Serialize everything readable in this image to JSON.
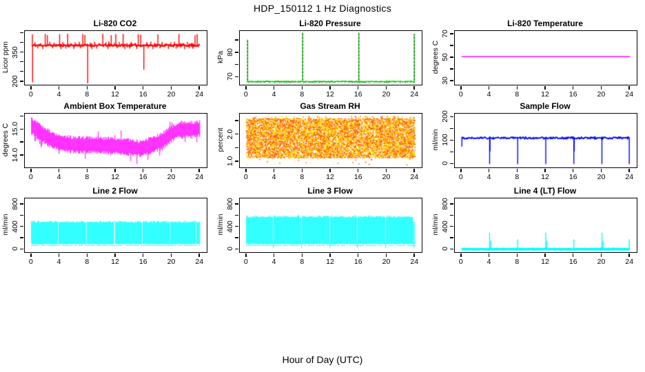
{
  "header": {
    "title": "HDP_150112  1 Hz Diagnostics"
  },
  "footer": {
    "x_axis_caption": "Hour of Day (UTC)"
  },
  "chart_data": [
    {
      "type": "line",
      "title": "Li-820 CO2",
      "ylabel": "Licor ppm",
      "xlabel": "",
      "color": "#FF0000",
      "x_ticks": [
        0,
        4,
        8,
        12,
        16,
        20,
        24
      ],
      "y_range": [
        185,
        462
      ],
      "y_major": [
        [
          200,
          "200"
        ],
        [
          350,
          "350"
        ]
      ],
      "y_minor": [
        250,
        300,
        400,
        450
      ],
      "series": {
        "pattern": "baseline_spikes",
        "baseline": 388,
        "noise": 5,
        "line_width": 2.2,
        "spikes_up": [
          [
            0.12,
            445
          ],
          [
            1.95,
            447
          ],
          [
            2.25,
            441
          ],
          [
            4.0,
            446
          ],
          [
            5.15,
            448
          ],
          [
            7.3,
            447
          ],
          [
            7.6,
            442
          ],
          [
            10.15,
            449
          ],
          [
            11.35,
            441
          ],
          [
            12.0,
            446
          ],
          [
            13.05,
            447
          ],
          [
            15.2,
            446
          ],
          [
            15.55,
            443
          ],
          [
            18.0,
            445
          ],
          [
            21.0,
            447
          ],
          [
            23.3,
            440
          ],
          [
            23.6,
            446
          ],
          [
            0.5,
            404
          ],
          [
            1.3,
            400
          ],
          [
            2.6,
            407
          ],
          [
            3.2,
            401
          ],
          [
            4.45,
            405
          ],
          [
            5.6,
            399
          ],
          [
            6.2,
            403
          ],
          [
            6.8,
            406
          ],
          [
            8.35,
            402
          ],
          [
            9.0,
            407
          ],
          [
            9.6,
            400
          ],
          [
            10.6,
            404
          ],
          [
            11.0,
            409
          ],
          [
            11.8,
            402
          ],
          [
            12.5,
            405
          ],
          [
            13.6,
            400
          ],
          [
            14.2,
            406
          ],
          [
            14.75,
            401
          ],
          [
            16.4,
            404
          ],
          [
            17.0,
            408
          ],
          [
            17.5,
            401
          ],
          [
            18.6,
            405
          ],
          [
            19.2,
            399
          ],
          [
            19.85,
            403
          ],
          [
            20.35,
            407
          ],
          [
            21.6,
            401
          ],
          [
            22.2,
            405
          ],
          [
            22.75,
            400
          ]
        ],
        "spikes_down": [
          [
            0.15,
            197
          ],
          [
            8.0,
            192
          ],
          [
            16.0,
            262
          ],
          [
            0.9,
            371
          ],
          [
            1.6,
            369
          ],
          [
            3.0,
            372
          ],
          [
            4.2,
            368
          ],
          [
            4.9,
            371
          ],
          [
            6.0,
            369
          ],
          [
            7.0,
            372
          ],
          [
            8.6,
            368
          ],
          [
            9.3,
            371
          ],
          [
            10.9,
            369
          ],
          [
            12.2,
            372
          ],
          [
            13.3,
            368
          ],
          [
            14.0,
            371
          ],
          [
            15.0,
            369
          ],
          [
            16.6,
            371
          ],
          [
            17.3,
            368
          ],
          [
            18.3,
            372
          ],
          [
            19.5,
            369
          ],
          [
            20.6,
            371
          ],
          [
            21.8,
            368
          ],
          [
            22.5,
            372
          ],
          [
            23.0,
            370
          ]
        ]
      }
    },
    {
      "type": "line",
      "title": "Li-820 Pressure",
      "ylabel": "kPa",
      "xlabel": "",
      "color": "#00E100",
      "x_ticks": [
        0,
        4,
        8,
        12,
        16,
        20,
        24
      ],
      "y_range": [
        67.0,
        89.0
      ],
      "y_major": [
        [
          70,
          "70"
        ],
        [
          80,
          "80"
        ]
      ],
      "y_minor": [
        75,
        85
      ],
      "series": {
        "pattern": "dotted_spikes",
        "baseline": 68.3,
        "noise": 0.15,
        "line_width": 1.6,
        "dot_color": "#005500",
        "spikes_up": [
          [
            0.15,
            85.5
          ],
          [
            8.0,
            88.3
          ],
          [
            16.0,
            88.3
          ],
          [
            23.9,
            87.8
          ]
        ],
        "spikes_down": [
          [
            1.3,
            67.6
          ],
          [
            4.0,
            67.5
          ],
          [
            8.15,
            67.6
          ],
          [
            12.3,
            67.6
          ],
          [
            16.15,
            67.6
          ],
          [
            20.0,
            67.5
          ]
        ]
      }
    },
    {
      "type": "line",
      "title": "Li-820 Temperature",
      "ylabel": "degrees C",
      "xlabel": "",
      "color": "#FF00FF",
      "x_ticks": [
        0,
        4,
        8,
        12,
        16,
        20,
        24
      ],
      "y_range": [
        27,
        73
      ],
      "y_major": [
        [
          30,
          "30"
        ],
        [
          50,
          "50"
        ],
        [
          70,
          "70"
        ]
      ],
      "y_minor": [
        40,
        60
      ],
      "series": {
        "pattern": "flat",
        "level": 51
      }
    },
    {
      "type": "line",
      "title": "Ambient Box Temperature",
      "ylabel": "degrees C",
      "xlabel": "",
      "color": "#FF00FF",
      "x_ticks": [
        0,
        4,
        8,
        12,
        16,
        20,
        24
      ],
      "y_range": [
        13.55,
        15.62
      ],
      "y_major": [
        [
          14.0,
          "14.0"
        ],
        [
          15.0,
          "15.0"
        ]
      ],
      "y_minor": [
        14.5,
        15.5
      ],
      "series": {
        "pattern": "noisy_band",
        "mean_x": [
          0,
          1,
          2,
          3,
          4,
          6,
          8,
          10,
          12,
          14,
          15.5,
          17,
          18.5,
          20,
          21,
          22,
          23,
          24
        ],
        "mean_y": [
          15.15,
          14.95,
          14.75,
          14.6,
          14.5,
          14.42,
          14.42,
          14.4,
          14.38,
          14.33,
          14.27,
          14.4,
          14.55,
          14.85,
          15.0,
          15.02,
          15.0,
          15.05
        ],
        "half_width": 0.28,
        "spike_prob": 0.06,
        "spike_max": 0.3
      }
    },
    {
      "type": "scatter",
      "title": "Gas Stream RH",
      "ylabel": "percent",
      "xlabel": "",
      "color": "#FFA500",
      "x_ticks": [
        0,
        4,
        8,
        12,
        16,
        20,
        24
      ],
      "y_range": [
        0.8,
        2.78
      ],
      "y_major": [
        [
          1.0,
          "1.0"
        ],
        [
          2.0,
          "2.0"
        ]
      ],
      "y_minor": [
        1.5,
        2.5
      ],
      "series": {
        "pattern": "dot_band",
        "lo": 1.15,
        "hi": 2.6,
        "dot_colors": [
          "#FF5500",
          "#FFD900"
        ],
        "n_dots": 9000,
        "low_tail_prob": 0.004,
        "low_tail_min": 0.88
      }
    },
    {
      "type": "line",
      "title": "Sample Flow",
      "ylabel": "ml/min",
      "xlabel": "",
      "color": "#0000FF",
      "x_ticks": [
        0,
        4,
        8,
        12,
        16,
        20,
        24
      ],
      "y_range": [
        -14,
        216
      ],
      "y_major": [
        [
          0,
          "0"
        ],
        [
          100,
          "100"
        ],
        [
          200,
          "200"
        ]
      ],
      "y_minor": [
        50,
        150
      ],
      "series": {
        "pattern": "baseline_spikes",
        "baseline": 112,
        "noise": 4,
        "line_width": 1.8,
        "spikes_up": [],
        "spikes_down": [
          [
            0.05,
            75
          ],
          [
            4.0,
            0
          ],
          [
            4.06,
            55
          ],
          [
            8.0,
            0
          ],
          [
            12.0,
            0
          ],
          [
            16.0,
            0
          ],
          [
            16.06,
            55
          ],
          [
            20.0,
            0
          ],
          [
            23.9,
            0
          ]
        ]
      }
    },
    {
      "type": "line",
      "title": "Line 2 Flow",
      "ylabel": "ml/min",
      "xlabel": "",
      "color": "#00FFFF",
      "x_ticks": [
        0,
        4,
        8,
        12,
        16,
        20,
        24
      ],
      "y_range": [
        -45,
        910
      ],
      "y_major": [
        [
          0,
          "0"
        ],
        [
          400,
          "400"
        ],
        [
          800,
          "800"
        ]
      ],
      "y_minor": [
        200,
        600
      ],
      "series": {
        "pattern": "solid_band",
        "lo": 100,
        "hi": 490,
        "edge_noise": 12,
        "gaps": [
          3.83,
          7.83,
          11.83,
          15.78,
          19.73,
          23.45
        ],
        "gap_width": 0.1,
        "bottom_fringe": true
      }
    },
    {
      "type": "line",
      "title": "Line 3 Flow",
      "ylabel": "ml/min",
      "xlabel": "",
      "color": "#00FFFF",
      "x_ticks": [
        0,
        4,
        8,
        12,
        16,
        20,
        24
      ],
      "y_range": [
        -45,
        910
      ],
      "y_major": [
        [
          0,
          "0"
        ],
        [
          400,
          "400"
        ],
        [
          800,
          "800"
        ]
      ],
      "y_minor": [
        200,
        600
      ],
      "series": {
        "pattern": "solid_band",
        "lo": 100,
        "hi": 585,
        "edge_noise": 14,
        "gaps": [
          3.85,
          7.85,
          11.85,
          15.85,
          19.85,
          23.85
        ],
        "gap_width": 0.1,
        "gap_stub": 30,
        "end_taper": {
          "from": 23.7,
          "hi": 500
        },
        "bottom_fringe": true
      }
    },
    {
      "type": "line",
      "title": "Line 4 (LT) Flow",
      "ylabel": "ml/min",
      "xlabel": "",
      "color": "#00FFFF",
      "x_ticks": [
        0,
        4,
        8,
        12,
        16,
        20,
        24
      ],
      "y_range": [
        -45,
        910
      ],
      "y_major": [
        [
          0,
          "0"
        ],
        [
          400,
          "400"
        ],
        [
          800,
          "800"
        ]
      ],
      "y_minor": [
        200,
        600
      ],
      "series": {
        "pattern": "baseline_spikes",
        "baseline": 8,
        "noise": 6,
        "line_width": 3.5,
        "spikes_up": [
          [
            4.0,
            300
          ],
          [
            4.15,
            150
          ],
          [
            8.0,
            182
          ],
          [
            12.0,
            300
          ],
          [
            12.15,
            150
          ],
          [
            16.0,
            182
          ],
          [
            20.0,
            300
          ],
          [
            20.15,
            150
          ],
          [
            23.9,
            182
          ]
        ],
        "spikes_down": []
      }
    }
  ]
}
